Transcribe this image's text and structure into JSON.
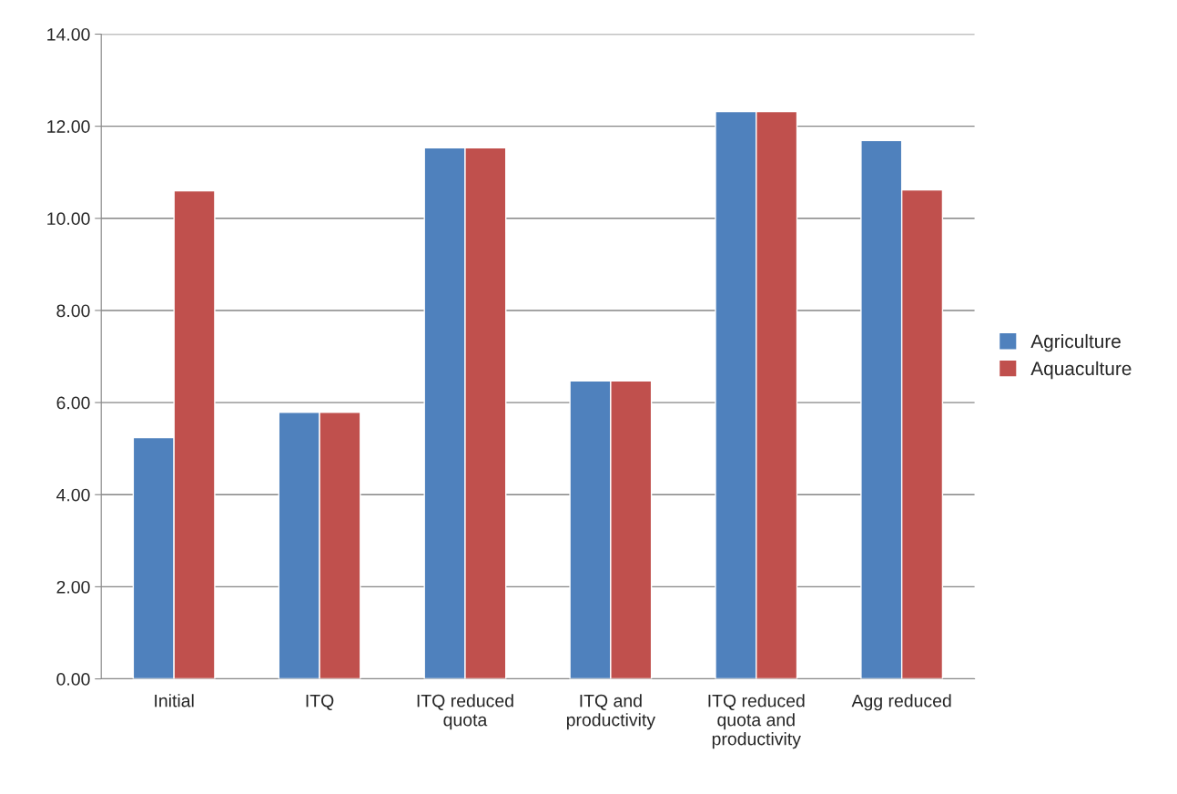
{
  "chart_data": {
    "type": "bar",
    "categories": [
      "Initial",
      "ITQ",
      "ITQ reduced\nquota",
      "ITQ and\nproductivity",
      "ITQ reduced\nquota and\nproductivity",
      "Agg reduced"
    ],
    "series": [
      {
        "name": "Agriculture",
        "color": "#4f81bd",
        "values": [
          5.24,
          5.79,
          11.53,
          6.47,
          12.32,
          11.69
        ]
      },
      {
        "name": "Aquaculture",
        "color": "#c0504d",
        "values": [
          10.6,
          5.79,
          11.53,
          6.47,
          12.32,
          10.62
        ]
      }
    ],
    "ylim": [
      0,
      14
    ],
    "yticks": [
      {
        "value": 0,
        "label": "0.00"
      },
      {
        "value": 2,
        "label": "2.00"
      },
      {
        "value": 4,
        "label": "4.00"
      },
      {
        "value": 6,
        "label": "6.00"
      },
      {
        "value": 8,
        "label": "8.00"
      },
      {
        "value": 10,
        "label": "10.00"
      },
      {
        "value": 12,
        "label": "12.00"
      },
      {
        "value": 14,
        "label": "14.00"
      }
    ],
    "grid": "y",
    "legend": "right"
  }
}
